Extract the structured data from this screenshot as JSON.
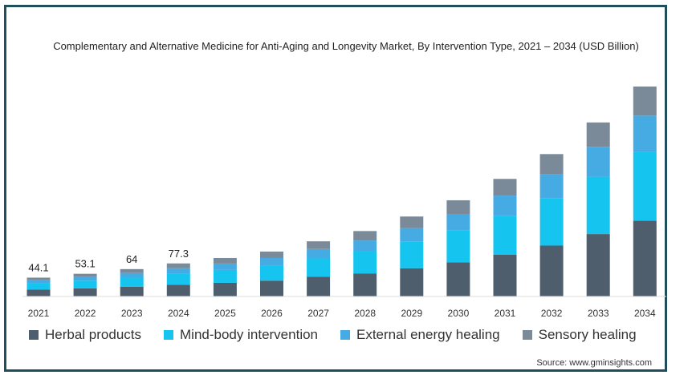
{
  "chart_data": {
    "type": "bar",
    "stacked": true,
    "title": "Complementary and Alternative Medicine for Anti-Aging and Longevity Market, By Intervention Type, 2021 – 2034 (USD Billion)",
    "categories": [
      "2021",
      "2022",
      "2023",
      "2024",
      "2025",
      "2026",
      "2027",
      "2028",
      "2029",
      "2030",
      "2031",
      "2032",
      "2033",
      "2034"
    ],
    "series": [
      {
        "name": "Herbal products",
        "color": "#4f5e6c",
        "values": [
          16,
          19,
          23,
          27,
          32,
          37,
          46,
          54,
          66,
          80,
          98,
          119,
          146,
          177
        ]
      },
      {
        "name": "Mind-body intervention",
        "color": "#15c4ef",
        "values": [
          15,
          18,
          21,
          26,
          30,
          35,
          43,
          51,
          62,
          74,
          91,
          110,
          134,
          162
        ]
      },
      {
        "name": "External energy healing",
        "color": "#47abe3",
        "values": [
          7,
          9,
          11,
          13,
          15,
          18,
          22,
          26,
          32,
          39,
          47,
          57,
          70,
          84
        ]
      },
      {
        "name": "Sensory healing",
        "color": "#7a8a98",
        "values": [
          6,
          7,
          9,
          11,
          13,
          15,
          18,
          22,
          27,
          32,
          39,
          47,
          57,
          68
        ]
      }
    ],
    "data_labels": [
      "44.1",
      "53.1",
      "64",
      "77.3",
      "",
      "",
      "",
      "",
      "",
      "",
      "",
      "",
      "",
      ""
    ],
    "totals": [
      44.1,
      53.1,
      64,
      77.3,
      90,
      105,
      129,
      153,
      187,
      225,
      275,
      333,
      407,
      491
    ],
    "ylim": [
      0,
      491
    ],
    "grid": false,
    "legend_position": "bottom"
  },
  "source": "Source: www.gminsights.com"
}
